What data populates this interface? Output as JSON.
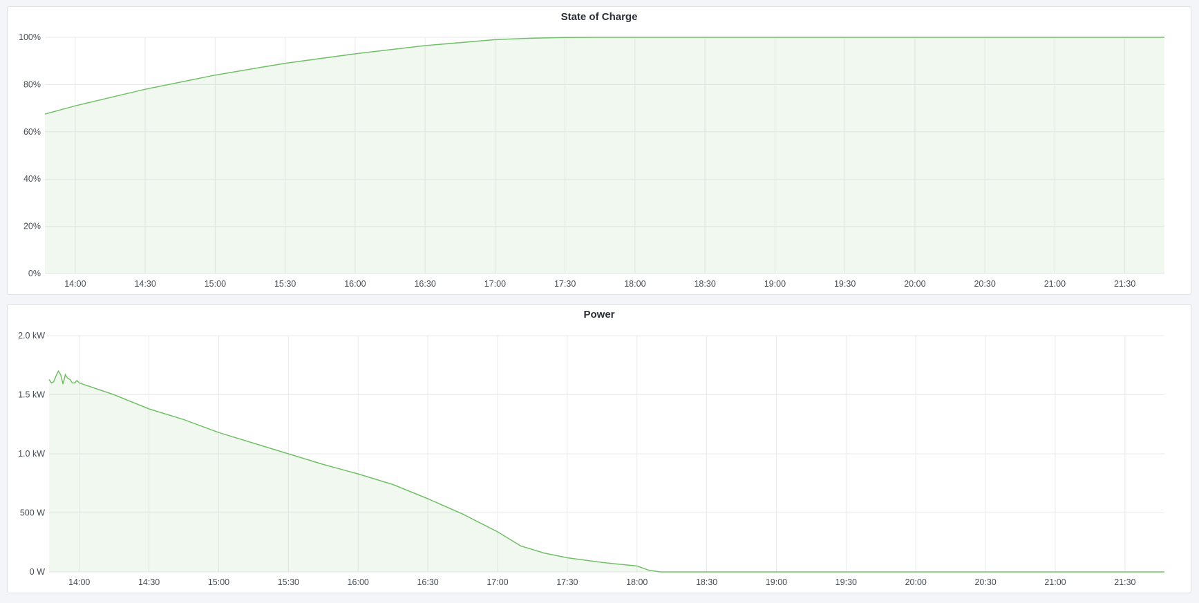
{
  "colors": {
    "line": "#73bf69",
    "fill": "rgba(115,191,105,0.1)",
    "grid": "#e9eaec"
  },
  "chart_data": [
    {
      "type": "area",
      "title": "State of Charge",
      "x_range": [
        "13:47",
        "21:47"
      ],
      "xticks": [
        "14:00",
        "14:30",
        "15:00",
        "15:30",
        "16:00",
        "16:30",
        "17:00",
        "17:30",
        "18:00",
        "18:30",
        "19:00",
        "19:30",
        "20:00",
        "20:30",
        "21:00",
        "21:30"
      ],
      "ylim": [
        0,
        100
      ],
      "yticks": [
        {
          "v": 0,
          "label": "0%"
        },
        {
          "v": 20,
          "label": "20%"
        },
        {
          "v": 40,
          "label": "40%"
        },
        {
          "v": 60,
          "label": "60%"
        },
        {
          "v": 80,
          "label": "80%"
        },
        {
          "v": 100,
          "label": "100%"
        }
      ],
      "grid": true,
      "series": [
        {
          "x": [
            "13:47",
            "14:00",
            "14:30",
            "15:00",
            "15:30",
            "16:00",
            "16:30",
            "17:00",
            "17:15",
            "17:30",
            "17:45",
            "18:00",
            "21:47"
          ],
          "y": [
            67.5,
            71,
            78,
            84,
            89,
            93,
            96.5,
            99,
            99.6,
            99.9,
            100,
            100,
            100
          ]
        }
      ]
    },
    {
      "type": "area",
      "title": "Power",
      "x_range": [
        "13:47",
        "21:47"
      ],
      "xticks": [
        "14:00",
        "14:30",
        "15:00",
        "15:30",
        "16:00",
        "16:30",
        "17:00",
        "17:30",
        "18:00",
        "18:30",
        "19:00",
        "19:30",
        "20:00",
        "20:30",
        "21:00",
        "21:30"
      ],
      "ylim": [
        0,
        2000
      ],
      "yticks": [
        {
          "v": 0,
          "label": "0 W"
        },
        {
          "v": 500,
          "label": "500 W"
        },
        {
          "v": 1000,
          "label": "1.0 kW"
        },
        {
          "v": 1500,
          "label": "1.5 kW"
        },
        {
          "v": 2000,
          "label": "2.0 kW"
        }
      ],
      "grid": true,
      "series": [
        {
          "x": [
            "13:47",
            "13:48",
            "13:49",
            "13:50",
            "13:51",
            "13:52",
            "13:53",
            "13:54",
            "13:55",
            "13:56",
            "13:57",
            "13:58",
            "13:59",
            "14:00",
            "14:15",
            "14:30",
            "14:45",
            "15:00",
            "15:15",
            "15:30",
            "15:45",
            "16:00",
            "16:15",
            "16:30",
            "16:45",
            "17:00",
            "17:10",
            "17:20",
            "17:30",
            "17:45",
            "18:00",
            "18:05",
            "18:10",
            "18:20",
            "21:47"
          ],
          "y": [
            1630,
            1600,
            1610,
            1660,
            1700,
            1670,
            1590,
            1670,
            1640,
            1630,
            1600,
            1600,
            1620,
            1600,
            1500,
            1380,
            1290,
            1180,
            1090,
            1000,
            910,
            830,
            740,
            620,
            490,
            340,
            220,
            160,
            120,
            80,
            50,
            15,
            0,
            0,
            0
          ]
        }
      ]
    }
  ]
}
